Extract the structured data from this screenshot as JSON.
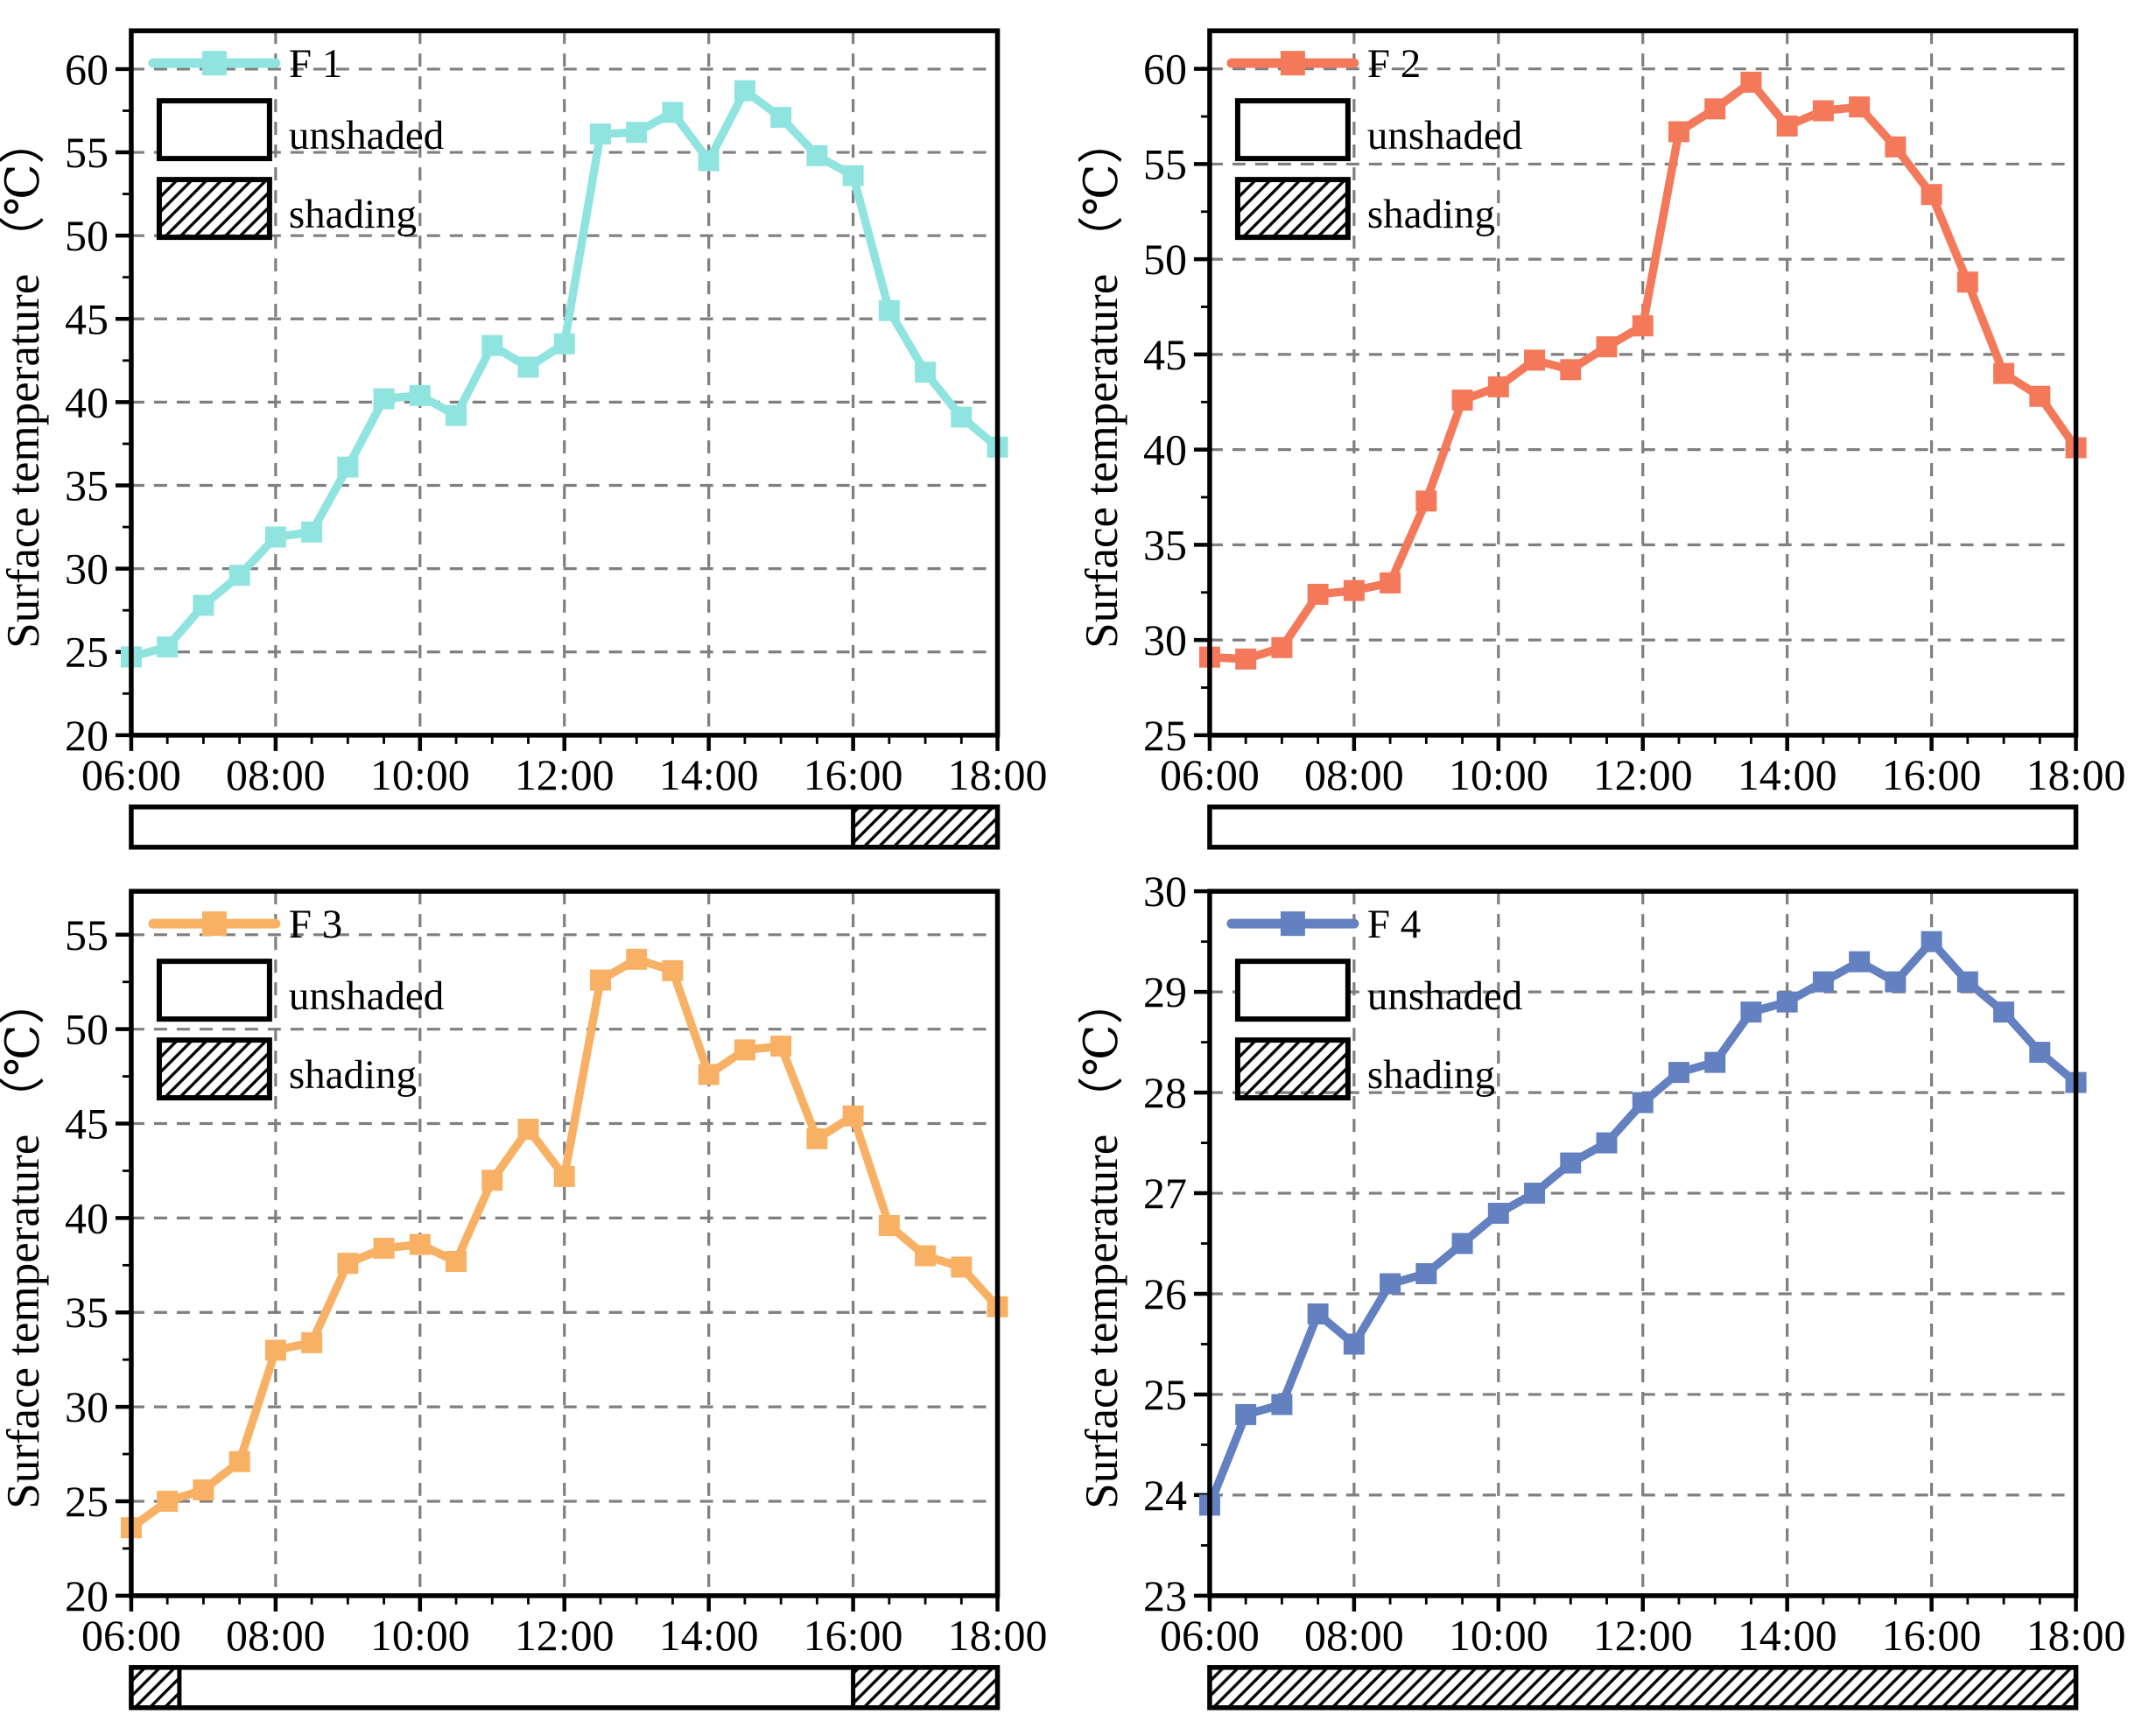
{
  "figure": {
    "background": "#ffffff",
    "grid_color": "#7f7f7f",
    "spine_color": "#000000",
    "panel_order": [
      "F 1",
      "F 2",
      "F 3",
      "F 4"
    ]
  },
  "chart_data": [
    {
      "id": "f1",
      "type": "line",
      "series_label": "F 1",
      "color": "#90E4DF",
      "marker": "square",
      "ylabel": "Surface temperature （℃）",
      "x": [
        "06:00",
        "06:30",
        "07:00",
        "07:30",
        "08:00",
        "08:30",
        "09:00",
        "09:30",
        "10:00",
        "10:30",
        "11:00",
        "11:30",
        "12:00",
        "12:30",
        "13:00",
        "13:30",
        "14:00",
        "14:30",
        "15:00",
        "15:30",
        "16:00",
        "16:30",
        "17:00",
        "17:30",
        "18:00"
      ],
      "values": [
        24.7,
        25.3,
        27.8,
        29.6,
        31.9,
        32.2,
        36.1,
        40.2,
        40.4,
        39.2,
        43.4,
        42.1,
        43.5,
        56.1,
        56.2,
        57.4,
        54.5,
        58.7,
        57.1,
        54.8,
        53.6,
        45.5,
        41.8,
        39.1,
        37.3
      ],
      "x_tick_labels": [
        "06:00",
        "08:00",
        "10:00",
        "12:00",
        "14:00",
        "16:00",
        "18:00"
      ],
      "yticks": [
        20,
        25,
        30,
        35,
        40,
        45,
        50,
        55,
        60
      ],
      "ylim": [
        20,
        62.3
      ],
      "y_minor_step": 2.5,
      "grid": "dashed",
      "legend_position": "top-left",
      "legend": {
        "unshaded_label": "unshaded",
        "shading_label": "shading"
      },
      "shading_bar": [
        {
          "start": "06:00",
          "end": "16:00",
          "style": "unshaded"
        },
        {
          "start": "16:00",
          "end": "18:00",
          "style": "shading"
        }
      ]
    },
    {
      "id": "f2",
      "type": "line",
      "series_label": "F 2",
      "color": "#F4795A",
      "marker": "square",
      "ylabel": "Surface temperature （℃）",
      "x": [
        "06:00",
        "06:30",
        "07:00",
        "07:30",
        "08:00",
        "08:30",
        "09:00",
        "09:30",
        "10:00",
        "10:30",
        "11:00",
        "11:30",
        "12:00",
        "12:30",
        "13:00",
        "13:30",
        "14:00",
        "14:30",
        "15:00",
        "15:30",
        "16:00",
        "16:30",
        "17:00",
        "17:30",
        "18:00"
      ],
      "values": [
        29.1,
        29.0,
        29.6,
        32.4,
        32.6,
        33.0,
        37.3,
        42.6,
        43.3,
        44.7,
        44.2,
        45.4,
        46.5,
        56.7,
        57.9,
        59.3,
        57.0,
        57.8,
        58.0,
        55.9,
        53.4,
        48.8,
        44.0,
        42.8,
        40.1
      ],
      "x_tick_labels": [
        "06:00",
        "08:00",
        "10:00",
        "12:00",
        "14:00",
        "16:00",
        "18:00"
      ],
      "yticks": [
        25,
        30,
        35,
        40,
        45,
        50,
        55,
        60
      ],
      "ylim": [
        25,
        62
      ],
      "y_minor_step": 2.5,
      "grid": "dashed",
      "legend_position": "top-left",
      "legend": {
        "unshaded_label": "unshaded",
        "shading_label": "shading"
      },
      "shading_bar": [
        {
          "start": "06:00",
          "end": "18:00",
          "style": "unshaded"
        }
      ]
    },
    {
      "id": "f3",
      "type": "line",
      "series_label": "F 3",
      "color": "#F8B164",
      "marker": "square",
      "ylabel": "Surface temperature （℃）",
      "x": [
        "06:00",
        "06:30",
        "07:00",
        "07:30",
        "08:00",
        "08:30",
        "09:00",
        "09:30",
        "10:00",
        "10:30",
        "11:00",
        "11:30",
        "12:00",
        "12:30",
        "13:00",
        "13:30",
        "14:00",
        "14:30",
        "15:00",
        "15:30",
        "16:00",
        "16:30",
        "17:00",
        "17:30",
        "18:00"
      ],
      "values": [
        23.6,
        25.0,
        25.6,
        27.1,
        33.0,
        33.4,
        37.6,
        38.4,
        38.6,
        37.7,
        42.0,
        44.7,
        42.2,
        52.6,
        53.7,
        53.1,
        47.6,
        48.9,
        49.1,
        44.2,
        45.4,
        39.6,
        38.0,
        37.4,
        35.3
      ],
      "x_tick_labels": [
        "06:00",
        "08:00",
        "10:00",
        "12:00",
        "14:00",
        "16:00",
        "18:00"
      ],
      "yticks": [
        20,
        25,
        30,
        35,
        40,
        45,
        50,
        55
      ],
      "ylim": [
        20,
        57.3
      ],
      "y_minor_step": 2.5,
      "grid": "dashed",
      "legend_position": "top-left",
      "legend": {
        "unshaded_label": "unshaded",
        "shading_label": "shading"
      },
      "shading_bar": [
        {
          "start": "06:00",
          "end": "06:40",
          "style": "shading"
        },
        {
          "start": "06:40",
          "end": "16:00",
          "style": "unshaded"
        },
        {
          "start": "16:00",
          "end": "18:00",
          "style": "shading"
        }
      ]
    },
    {
      "id": "f4",
      "type": "line",
      "series_label": "F 4",
      "color": "#6380C1",
      "marker": "square",
      "ylabel": "Surface temperature （℃）",
      "x": [
        "06:00",
        "06:30",
        "07:00",
        "07:30",
        "08:00",
        "08:30",
        "09:00",
        "09:30",
        "10:00",
        "10:30",
        "11:00",
        "11:30",
        "12:00",
        "12:30",
        "13:00",
        "13:30",
        "14:00",
        "14:30",
        "15:00",
        "15:30",
        "16:00",
        "16:30",
        "17:00",
        "17:30",
        "18:00"
      ],
      "values": [
        23.9,
        24.8,
        24.9,
        25.8,
        25.5,
        26.1,
        26.2,
        26.5,
        26.8,
        27.0,
        27.3,
        27.5,
        27.9,
        28.2,
        28.3,
        28.8,
        28.9,
        29.1,
        29.3,
        29.1,
        29.5,
        29.1,
        28.8,
        28.4,
        28.1
      ],
      "x_tick_labels": [
        "06:00",
        "08:00",
        "10:00",
        "12:00",
        "14:00",
        "16:00",
        "18:00"
      ],
      "yticks": [
        23,
        24,
        25,
        26,
        27,
        28,
        29,
        30
      ],
      "ylim": [
        23,
        30
      ],
      "y_minor_step": 0.5,
      "grid": "dashed",
      "legend_position": "top-left",
      "legend": {
        "unshaded_label": "unshaded",
        "shading_label": "shading"
      },
      "shading_bar": [
        {
          "start": "06:00",
          "end": "18:00",
          "style": "shading"
        }
      ]
    }
  ]
}
